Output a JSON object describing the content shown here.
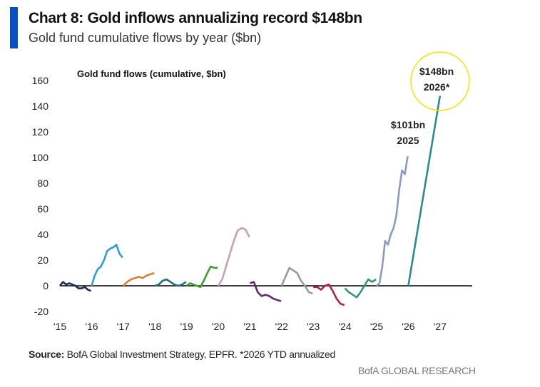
{
  "header": {
    "title": "Chart 8: Gold inflows annualizing record $148bn",
    "subtitle": "Gold fund cumulative flows by year ($bn)"
  },
  "footer": {
    "source_label": "Source:",
    "source_text": " BofA Global Investment Strategy, EPFR. *2026 YTD annualized",
    "brand": "BofA GLOBAL RESEARCH"
  },
  "chart_data": {
    "type": "line",
    "title": "Gold fund flows (cumulative, $bn)",
    "xlabel": "",
    "ylabel": "",
    "ylim": [
      -20,
      160
    ],
    "yticks": [
      "160",
      "140",
      "120",
      "100",
      "80",
      "60",
      "40",
      "20",
      "0",
      "-20"
    ],
    "ytick_values": [
      160,
      140,
      120,
      100,
      80,
      60,
      40,
      20,
      0,
      -20
    ],
    "xticks": [
      "'15",
      "'16",
      "'17",
      "'18",
      "'19",
      "'20",
      "'21",
      "'22",
      "'23",
      "'24",
      "'25",
      "'26",
      "'27"
    ],
    "grid": false,
    "legend": "none",
    "series": [
      {
        "year": 2015,
        "color": "#1b2a5c",
        "values": [
          0,
          3,
          1,
          2,
          1,
          0,
          -2,
          -2,
          -1,
          -3,
          -4
        ]
      },
      {
        "year": 2016,
        "color": "#2c9fd4",
        "values": [
          0,
          8,
          13,
          15,
          20,
          27,
          29,
          30,
          32,
          25,
          22
        ]
      },
      {
        "year": 2017,
        "color": "#e57a2e",
        "values": [
          0,
          3,
          5,
          6,
          7,
          6,
          8,
          9,
          10
        ]
      },
      {
        "year": 2018,
        "color": "#1f6e78",
        "values": [
          0,
          1,
          4,
          5,
          3,
          1,
          0,
          1,
          3
        ]
      },
      {
        "year": 2019,
        "color": "#3d9e2c",
        "values": [
          0,
          2,
          1,
          0,
          -1,
          4,
          10,
          15,
          14,
          14
        ]
      },
      {
        "year": 2020,
        "color": "#c7a0b6",
        "values": [
          0,
          5,
          15,
          25,
          35,
          43,
          45,
          44,
          38
        ]
      },
      {
        "year": 2021,
        "color": "#5b2d6b",
        "values": [
          2,
          3,
          -5,
          -8,
          -7,
          -8,
          -10,
          -11,
          -12
        ]
      },
      {
        "year": 2022,
        "color": "#9a9a9a",
        "values": [
          0,
          7,
          14,
          12,
          10,
          4,
          0,
          -5,
          -6
        ]
      },
      {
        "year": 2023,
        "color": "#b5233c",
        "values": [
          -1,
          -1,
          -3,
          0,
          1,
          -4,
          -10,
          -14,
          -15
        ]
      },
      {
        "year": 2024,
        "color": "#2a9a78",
        "values": [
          -2,
          -5,
          -7,
          -9,
          -5,
          0,
          5,
          3,
          5
        ]
      },
      {
        "year": 2025,
        "color": "#8d9ac6",
        "values": [
          0,
          2,
          15,
          35,
          32,
          40,
          45,
          55,
          75,
          90,
          87,
          101
        ]
      },
      {
        "year": 2026,
        "color": "#2a8c8c",
        "points": [
          [
            0,
            0
          ],
          [
            0.1,
            15
          ],
          [
            1,
            148
          ]
        ]
      }
    ],
    "annotations": [
      {
        "text": "$101bn",
        "text2": "2025"
      },
      {
        "text": "$148bn",
        "text2": "2026*",
        "highlight": "#f2e600"
      }
    ]
  }
}
